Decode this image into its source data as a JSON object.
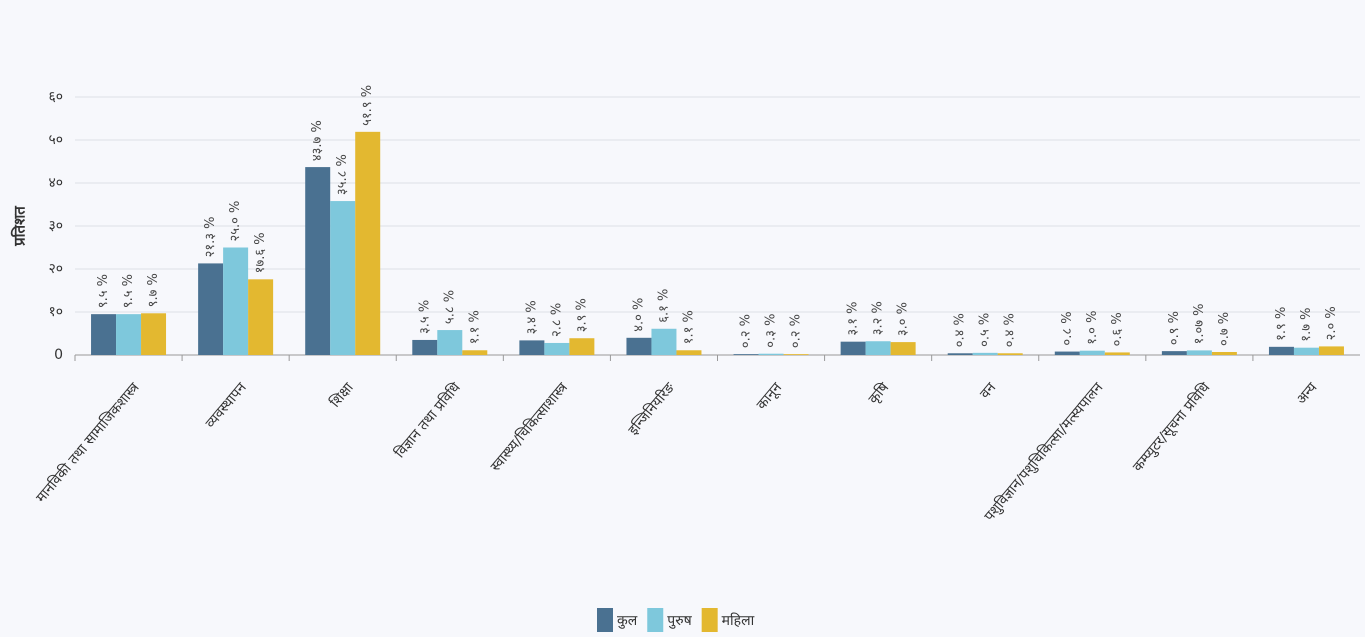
{
  "chart_data": {
    "type": "bar",
    "y_label": "प्रतिशत",
    "categories": [
      "मानविकी तथा सामाजिकशास्त्र",
      "व्यवस्थापन",
      "शिक्षा",
      "विज्ञान तथा प्रविधि",
      "स्वास्थ्य/चिकित्साशास्त्र",
      "इन्जिनियरिङ",
      "कानून",
      "कृषि",
      "वन",
      "पशुविज्ञान/पशुचिकित्सा/मत्स्यपालन",
      "कम्प्युटर/सूचना प्रविधि",
      "अन्य"
    ],
    "series": [
      {
        "name": "कुल",
        "color": "#4a7191",
        "values": [
          9.5,
          21.3,
          43.7,
          3.5,
          3.4,
          4.0,
          0.2,
          3.1,
          0.4,
          0.8,
          0.9,
          1.9
        ],
        "value_labels": [
          "९.५ %",
          "२१.३ %",
          "४३.७ %",
          "३.५ %",
          "३.४ %",
          "४.० %",
          "०.२ %",
          "३.१ %",
          "०.४ %",
          "०.८ %",
          "०.९ %",
          "१.९ %"
        ]
      },
      {
        "name": "पुरुष",
        "color": "#7ec8dc",
        "values": [
          9.5,
          25.0,
          35.8,
          5.8,
          2.8,
          6.1,
          0.3,
          3.2,
          0.5,
          1.0,
          1.07,
          1.7
        ],
        "value_labels": [
          "९.५ %",
          "२५.० %",
          "३५.८ %",
          "५.८ %",
          "२.८ %",
          "६.१ %",
          "०.३ %",
          "३.२ %",
          "०.५ %",
          "१.० %",
          "१.०७ %",
          "१.७ %"
        ]
      },
      {
        "name": "महिला",
        "color": "#e3b830",
        "values": [
          9.7,
          17.6,
          51.9,
          1.1,
          3.9,
          1.1,
          0.2,
          3.0,
          0.4,
          0.6,
          0.7,
          2.0
        ],
        "value_labels": [
          "९.७ %",
          "१७.६ %",
          "५१.९ %",
          "१.१ %",
          "३.९ %",
          "१.१ %",
          "०.२ %",
          "३.० %",
          "०.४ %",
          "०.६ %",
          "०.७ %",
          "२.० %"
        ]
      }
    ],
    "ylim": [
      0,
      60
    ],
    "yticks": [
      0,
      {
        "value": 10,
        "label": "१०"
      },
      {
        "value": 20,
        "label": "२०"
      },
      {
        "value": 30,
        "label": "३०"
      },
      {
        "value": 40,
        "label": "४०"
      },
      {
        "value": 50,
        "label": "५०"
      },
      {
        "value": 60,
        "label": "६०"
      }
    ],
    "grid": true
  }
}
